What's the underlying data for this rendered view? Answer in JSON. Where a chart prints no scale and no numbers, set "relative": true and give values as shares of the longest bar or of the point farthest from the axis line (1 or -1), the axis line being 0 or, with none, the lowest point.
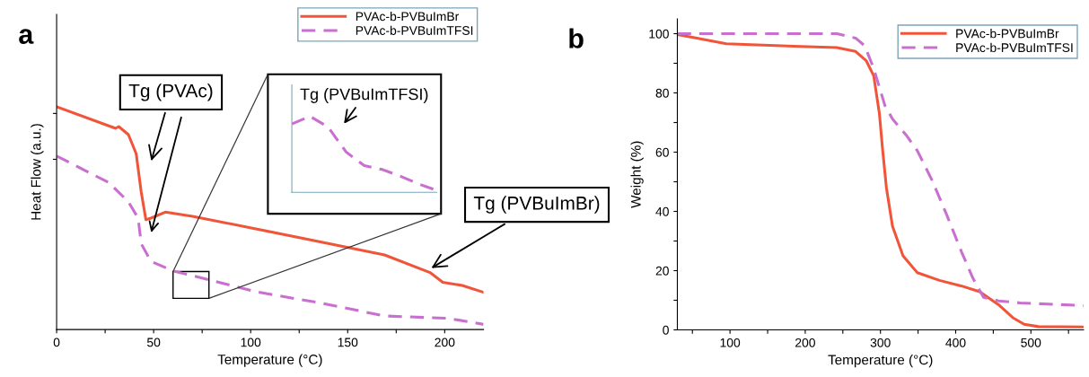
{
  "chart_data": [
    {
      "type": "line",
      "title": "a",
      "xlabel": "Temperature (°C)",
      "ylabel": "Heat Flow (a.u.)",
      "relative": true,
      "tick_labels": "x",
      "legend": "top right",
      "grid": false,
      "xlim": [
        0,
        220
      ],
      "xticks": [
        0,
        {
          "value": 25,
          "label": null
        },
        50,
        {
          "value": 75,
          "label": null
        },
        100,
        {
          "value": 125,
          "label": null
        },
        150,
        {
          "value": 175,
          "label": null
        },
        200
      ],
      "series": [
        {
          "name": "PVAc-b-PVBuImBr",
          "color": "#f0553a",
          "line_style": "solid",
          "x": [
            0,
            30.4,
            32,
            37,
            41,
            43.6,
            46,
            48.6,
            56,
            70,
            99.8,
            136,
            169,
            192.4,
            199,
            209,
            220
          ],
          "values": [
            1.0,
            0.903,
            0.911,
            0.875,
            0.789,
            0.617,
            0.493,
            0.5,
            0.527,
            0.508,
            0.457,
            0.393,
            0.335,
            0.256,
            0.212,
            0.198,
            0.167
          ]
        },
        {
          "name": "PVAc-b-PVBuImTFSI",
          "color": "#c86fd0",
          "line_style": "dashed",
          "x": [
            0,
            27,
            37,
            42,
            43.6,
            48.6,
            60,
            80,
            103,
            136,
            169,
            202,
            220
          ],
          "values": [
            0.779,
            0.659,
            0.573,
            0.5,
            0.385,
            0.306,
            0.263,
            0.22,
            0.169,
            0.119,
            0.061,
            0.05,
            0.023
          ]
        }
      ],
      "annotations": [
        "Tg (PVAc)",
        {
          "text": "Tg (PVBuImBr)",
          "x": 192,
          "y": 0.27
        }
      ]
    },
    {
      "type": "line",
      "relative": true,
      "tick_labels": false,
      "grid": false,
      "categories": [
        null,
        null,
        null,
        null,
        null,
        null,
        null,
        null,
        null
      ],
      "series": [
        {
          "color": "#c86fd0",
          "line_style": "dashed",
          "values": [
            0.9,
            1.0,
            0.86,
            0.53,
            0.35,
            0.3,
            0.21,
            0.11,
            0.025
          ]
        }
      ],
      "annotations": [
        "Tg (PVBuImTFSI)"
      ]
    },
    {
      "type": "line",
      "title": "b",
      "xlabel": "Temperature (°C)",
      "ylabel": "Weight (%)",
      "legend": "top right",
      "grid": false,
      "xlim": [
        30,
        570
      ],
      "xticks": [
        {
          "value": 50,
          "label": null
        },
        100,
        {
          "value": 150,
          "label": null
        },
        200,
        {
          "value": 250,
          "label": null
        },
        300,
        {
          "value": 350,
          "label": null
        },
        400,
        {
          "value": 450,
          "label": null
        },
        500,
        {
          "value": 550,
          "label": null
        }
      ],
      "ylim": [
        0,
        105
      ],
      "yticks": [
        0,
        {
          "value": 10,
          "label": null
        },
        20,
        {
          "value": 30,
          "label": null
        },
        40,
        {
          "value": 50,
          "label": null
        },
        60,
        {
          "value": 70,
          "label": null
        },
        80,
        {
          "value": 90,
          "label": null
        },
        100
      ],
      "series": [
        {
          "name": "PVAc-b-PVBuImBr",
          "color": "#f0553a",
          "line_style": "solid",
          "x": [
            30,
            56,
            95,
            193,
            242,
            267,
            281,
            291,
            298.6,
            303,
            308,
            316,
            330,
            349,
            378.5,
            408,
            432,
            457,
            476,
            491,
            510,
            570
          ],
          "values": [
            99.7,
            98.5,
            96.6,
            95.7,
            95.3,
            94,
            90.9,
            85.8,
            73,
            60.5,
            47.8,
            35,
            25,
            19.3,
            16.7,
            14.8,
            12.9,
            8.5,
            4.1,
            1.9,
            1.1,
            1.0
          ]
        },
        {
          "name": "PVAc-b-PVBuImTFSI",
          "color": "#c86fd0",
          "line_style": "dashed",
          "x": [
            30,
            242,
            267,
            279,
            291,
            306,
            316,
            335,
            349,
            369,
            388,
            408,
            423,
            437,
            457,
            486,
            570
          ],
          "values": [
            100,
            100,
            98.5,
            95.9,
            88.3,
            75.7,
            71.2,
            65.5,
            60.5,
            50.3,
            38.9,
            26.2,
            17.4,
            11,
            9.8,
            9.1,
            8.2
          ]
        }
      ]
    }
  ]
}
